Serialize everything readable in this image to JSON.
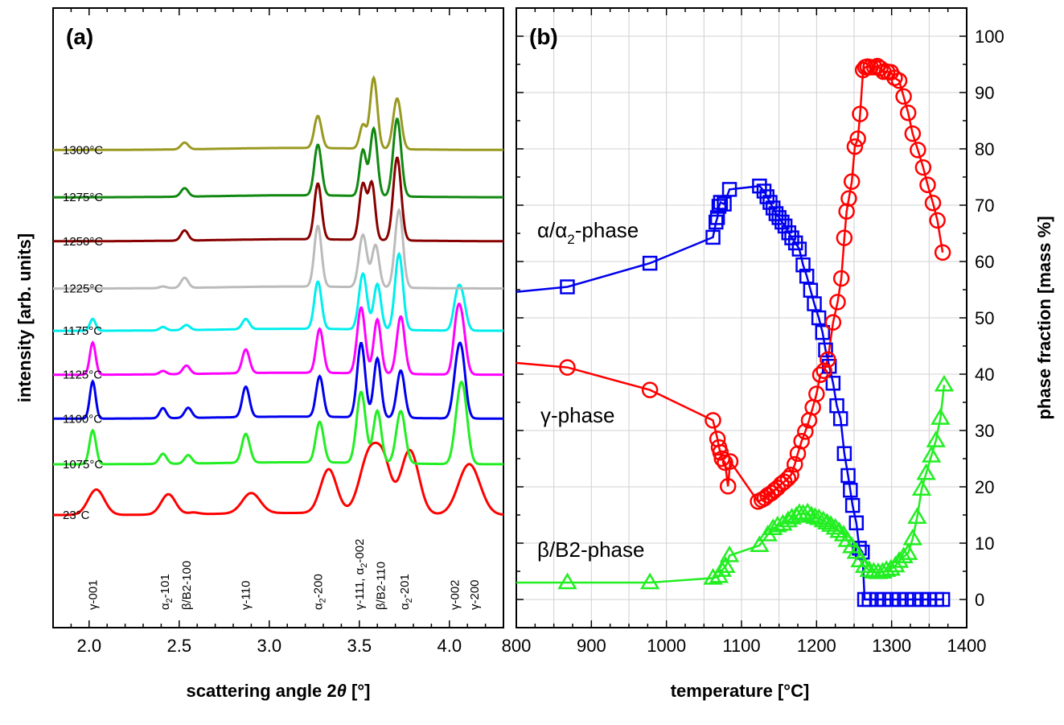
{
  "chart_data": [
    {
      "panel_label": "(a)",
      "type": "line",
      "xlabel": "scattering angle 2",
      "xlabel_symbol": "θ",
      "xlabel_unit": " [°]",
      "ylabel": "intensity [arb. units]",
      "xlim": [
        1.8,
        4.3
      ],
      "xticks": [
        "2.0",
        "2.5",
        "3.0",
        "3.5",
        "4.0"
      ],
      "xtick_values": [
        2.0,
        2.5,
        3.0,
        3.5,
        4.0
      ],
      "series": [
        {
          "label": "23°C",
          "color": "#ff0000",
          "offset": 0.0,
          "peaks": [
            [
              2.04,
              0.75,
              0.045
            ],
            [
              2.44,
              0.6,
              0.04
            ],
            [
              2.58,
              0.05,
              0.03
            ],
            [
              2.9,
              0.6,
              0.05
            ],
            [
              3.33,
              1.3,
              0.045
            ],
            [
              3.56,
              1.85,
              0.055
            ],
            [
              3.64,
              1.1,
              0.04
            ],
            [
              3.78,
              1.9,
              0.05
            ],
            [
              4.11,
              1.5,
              0.06
            ]
          ]
        },
        {
          "label": "1075°C",
          "color": "#22ee22",
          "offset": 1.5,
          "peaks": [
            [
              2.02,
              1.0,
              0.018
            ],
            [
              2.41,
              0.3,
              0.02
            ],
            [
              2.55,
              0.25,
              0.02
            ],
            [
              2.87,
              0.85,
              0.022
            ],
            [
              3.28,
              1.2,
              0.022
            ],
            [
              3.51,
              2.1,
              0.025
            ],
            [
              3.6,
              1.55,
              0.022
            ],
            [
              3.73,
              1.55,
              0.025
            ],
            [
              4.05,
              1.3,
              0.025
            ],
            [
              4.08,
              1.6,
              0.025
            ]
          ]
        },
        {
          "label": "1100°C",
          "color": "#0000ee",
          "offset": 2.85,
          "peaks": [
            [
              2.02,
              1.1,
              0.016
            ],
            [
              2.41,
              0.3,
              0.018
            ],
            [
              2.55,
              0.3,
              0.02
            ],
            [
              2.87,
              0.9,
              0.02
            ],
            [
              3.28,
              1.2,
              0.02
            ],
            [
              3.51,
              2.2,
              0.022
            ],
            [
              3.6,
              1.75,
              0.02
            ],
            [
              3.73,
              1.4,
              0.022
            ],
            [
              4.04,
              1.2,
              0.022
            ],
            [
              4.07,
              1.6,
              0.022
            ]
          ]
        },
        {
          "label": "1125°C",
          "color": "#ff00ff",
          "offset": 4.15,
          "peaks": [
            [
              2.02,
              0.95,
              0.016
            ],
            [
              2.41,
              0.1,
              0.018
            ],
            [
              2.54,
              0.25,
              0.02
            ],
            [
              2.87,
              0.7,
              0.02
            ],
            [
              3.28,
              1.3,
              0.02
            ],
            [
              3.51,
              1.95,
              0.022
            ],
            [
              3.6,
              1.6,
              0.02
            ],
            [
              3.73,
              1.7,
              0.022
            ],
            [
              4.04,
              1.3,
              0.02
            ],
            [
              4.07,
              1.4,
              0.022
            ]
          ]
        },
        {
          "label": "1175°C",
          "color": "#00eeee",
          "offset": 5.45,
          "peaks": [
            [
              2.02,
              0.35,
              0.016
            ],
            [
              2.41,
              0.1,
              0.018
            ],
            [
              2.54,
              0.15,
              0.02
            ],
            [
              2.87,
              0.3,
              0.02
            ],
            [
              3.27,
              1.4,
              0.02
            ],
            [
              3.52,
              1.65,
              0.022
            ],
            [
              3.6,
              1.35,
              0.02
            ],
            [
              3.72,
              2.25,
              0.022
            ],
            [
              4.04,
              0.8,
              0.02
            ],
            [
              4.07,
              0.95,
              0.022
            ]
          ]
        },
        {
          "label": "1225°C",
          "color": "#bbbbbb",
          "offset": 6.7,
          "peaks": [
            [
              2.41,
              0.05,
              0.018
            ],
            [
              2.53,
              0.3,
              0.02
            ],
            [
              3.27,
              1.8,
              0.02
            ],
            [
              3.52,
              1.55,
              0.022
            ],
            [
              3.59,
              1.25,
              0.02
            ],
            [
              3.72,
              2.3,
              0.022
            ]
          ]
        },
        {
          "label": "1250°C",
          "color": "#880000",
          "offset": 8.1,
          "peaks": [
            [
              2.53,
              0.3,
              0.02
            ],
            [
              3.27,
              1.65,
              0.02
            ],
            [
              3.52,
              1.65,
              0.02
            ],
            [
              3.57,
              1.65,
              0.018
            ],
            [
              3.71,
              2.45,
              0.022
            ]
          ]
        },
        {
          "label": "1275°C",
          "color": "#118811",
          "offset": 9.4,
          "peaks": [
            [
              2.53,
              0.25,
              0.02
            ],
            [
              3.27,
              1.5,
              0.02
            ],
            [
              3.52,
              1.35,
              0.018
            ],
            [
              3.58,
              2.0,
              0.02
            ],
            [
              3.71,
              2.3,
              0.022
            ]
          ]
        },
        {
          "label": "1300°C",
          "color": "#999922",
          "offset": 10.8,
          "peaks": [
            [
              2.53,
              0.2,
              0.02
            ],
            [
              3.27,
              0.95,
              0.02
            ],
            [
              3.52,
              0.7,
              0.018
            ],
            [
              3.58,
              2.1,
              0.02
            ],
            [
              3.71,
              1.5,
              0.022
            ]
          ]
        }
      ],
      "reflections": [
        {
          "x": 2.02,
          "base": "γ-001",
          "sub": "",
          "tail": ""
        },
        {
          "x": 2.42,
          "base": "α",
          "sub": "2",
          "tail": "-101"
        },
        {
          "x": 2.54,
          "base": "β/B2-100",
          "sub": "",
          "tail": ""
        },
        {
          "x": 2.87,
          "base": "γ-110",
          "sub": "",
          "tail": ""
        },
        {
          "x": 3.27,
          "base": "α",
          "sub": "2",
          "tail": "-200"
        },
        {
          "x": 3.5,
          "base": "γ-111, α",
          "sub": "2",
          "tail": "-002"
        },
        {
          "x": 3.62,
          "base": "β/B2-110",
          "sub": "",
          "tail": ""
        },
        {
          "x": 3.75,
          "base": "α",
          "sub": "2",
          "tail": "-201"
        },
        {
          "x": 4.03,
          "base": "γ-002",
          "sub": "",
          "tail": ""
        },
        {
          "x": 4.14,
          "base": "γ-200",
          "sub": "",
          "tail": ""
        }
      ]
    },
    {
      "panel_label": "(b)",
      "type": "line",
      "xlabel": "temperature [°C]",
      "ylabel": "phase fraction [mass %]",
      "xlim": [
        800,
        1400
      ],
      "ylim": [
        -5,
        105
      ],
      "xticks": [
        "800",
        "900",
        "1000",
        "1100",
        "1200",
        "1300",
        "1400"
      ],
      "xtick_values": [
        800,
        900,
        1000,
        1100,
        1200,
        1300,
        1400
      ],
      "yticks": [
        "0",
        "10",
        "20",
        "30",
        "40",
        "50",
        "60",
        "70",
        "80",
        "90",
        "100"
      ],
      "ytick_values": [
        0,
        10,
        20,
        30,
        40,
        50,
        60,
        70,
        80,
        90,
        100
      ],
      "grid": true,
      "series": [
        {
          "name": "α/α-phase",
          "name_base": "α/α",
          "name_sub": "2",
          "name_tail": "-phase",
          "color": "#0000ee",
          "marker": "square",
          "x": [
            800,
            868,
            978,
            1062,
            1066,
            1068,
            1070,
            1072,
            1077,
            1084,
            1124,
            1130,
            1134,
            1138,
            1142,
            1146,
            1150,
            1154,
            1158,
            1163,
            1167,
            1172,
            1177,
            1182,
            1187,
            1192,
            1197,
            1203,
            1208,
            1212,
            1217,
            1222,
            1227,
            1232,
            1237,
            1242,
            1245,
            1248,
            1253,
            1257,
            1261,
            1264,
            1270,
            1280,
            1290,
            1300,
            1310,
            1320,
            1330,
            1340,
            1350,
            1360,
            1368
          ],
          "y": [
            54.6,
            55.5,
            59.7,
            64.3,
            67.0,
            67.8,
            69.8,
            70.5,
            70.2,
            72.8,
            73.4,
            72.5,
            71.5,
            70.5,
            69.5,
            68.5,
            67.8,
            67.0,
            66.3,
            65.1,
            64.2,
            63.3,
            62.2,
            59.4,
            57.4,
            54.9,
            52.5,
            50.0,
            47.4,
            44.3,
            41.4,
            38.4,
            34.4,
            32.1,
            25.9,
            22.0,
            19.4,
            16.7,
            13.6,
            9.1,
            8.4,
            0,
            0,
            0,
            0,
            0,
            0,
            0,
            0,
            0,
            0,
            0,
            0
          ]
        },
        {
          "name": "γ-phase",
          "color": "#ff0000",
          "marker": "circle",
          "x": [
            800,
            868,
            978,
            1062,
            1068,
            1070,
            1072,
            1074,
            1078,
            1082,
            1085,
            1122,
            1127,
            1131,
            1135,
            1140,
            1144,
            1148,
            1153,
            1157,
            1162,
            1166,
            1171,
            1175,
            1180,
            1185,
            1190,
            1195,
            1200,
            1205,
            1210,
            1215,
            1222,
            1228,
            1233,
            1237,
            1240,
            1243,
            1247,
            1251,
            1255,
            1258,
            1262,
            1265,
            1268,
            1272,
            1277,
            1281,
            1285,
            1289,
            1294,
            1299,
            1304,
            1310,
            1316,
            1322,
            1328,
            1335,
            1342,
            1348,
            1355,
            1361,
            1368
          ],
          "y": [
            42,
            41.2,
            37.2,
            31.8,
            28.5,
            27.0,
            26.1,
            25.0,
            24.3,
            20.1,
            24.5,
            17.4,
            17.7,
            18.0,
            18.5,
            18.9,
            19.4,
            19.8,
            20.5,
            20.9,
            21.5,
            22.1,
            24.0,
            25.9,
            28.1,
            29.8,
            31.8,
            34.1,
            36.5,
            39.9,
            40.6,
            42.6,
            49.2,
            52.8,
            57.0,
            64.2,
            68.9,
            71.2,
            74.2,
            80.4,
            81.8,
            86.2,
            94.0,
            94.5,
            94.6,
            94.5,
            94.5,
            94.7,
            94.3,
            93.7,
            93.7,
            93.6,
            92.6,
            92.1,
            89.3,
            86.4,
            82.7,
            79.8,
            76.7,
            73.6,
            70.4,
            67.3,
            61.6
          ]
        },
        {
          "name": "β/B2-phase",
          "color": "#22ee22",
          "marker": "triangle",
          "x": [
            800,
            868,
            978,
            1062,
            1070,
            1074,
            1079,
            1084,
            1124,
            1135,
            1142,
            1148,
            1155,
            1162,
            1167,
            1173,
            1177,
            1182,
            1188,
            1193,
            1198,
            1203,
            1209,
            1214,
            1219,
            1225,
            1230,
            1236,
            1241,
            1247,
            1253,
            1258,
            1264,
            1270,
            1276,
            1282,
            1288,
            1293,
            1299,
            1305,
            1310,
            1316,
            1322,
            1328,
            1334,
            1340,
            1346,
            1353,
            1359,
            1365,
            1370
          ],
          "y": [
            3,
            3,
            3,
            3.8,
            4.1,
            5.2,
            5.9,
            7.8,
            9.6,
            11.5,
            12.6,
            13.1,
            13.4,
            14.0,
            14.5,
            14.8,
            15.3,
            15.2,
            15.4,
            14.9,
            14.6,
            14.4,
            14.0,
            13.6,
            13.2,
            12.7,
            12.1,
            11.5,
            10.5,
            9.4,
            8.4,
            6.9,
            5.9,
            5.2,
            4.9,
            4.8,
            4.9,
            5.2,
            5.4,
            6.0,
            6.8,
            7.6,
            8.2,
            10.8,
            14.6,
            19.6,
            22.4,
            25.5,
            28.2,
            32.2,
            38.1
          ]
        }
      ]
    }
  ]
}
